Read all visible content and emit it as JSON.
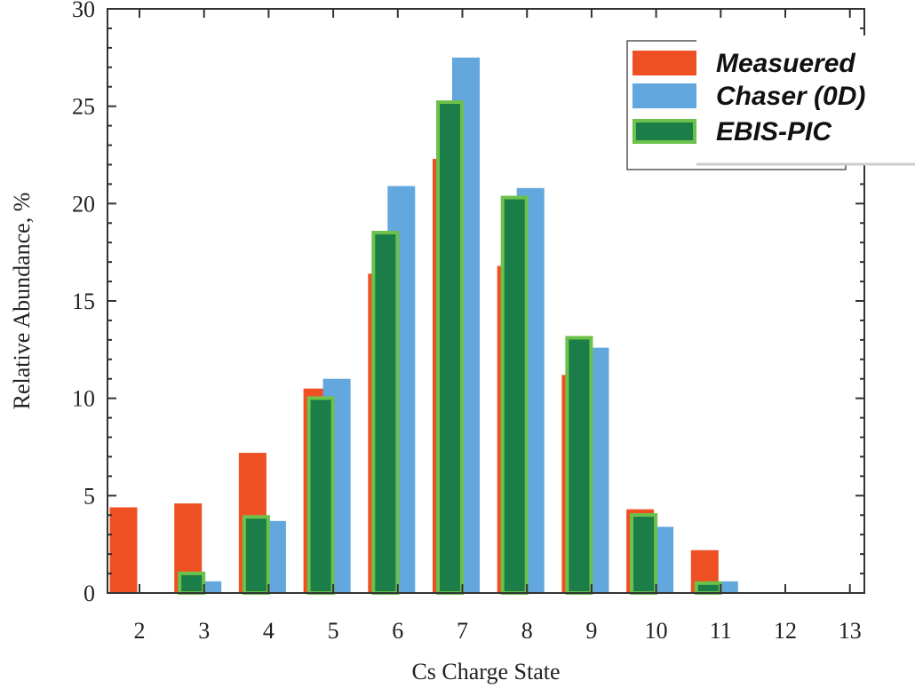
{
  "chart_data": {
    "type": "bar",
    "title": "",
    "xlabel": "Cs Charge State",
    "ylabel": "Relative Abundance, %",
    "categories": [
      "2",
      "3",
      "4",
      "5",
      "6",
      "7",
      "8",
      "9",
      "10",
      "11",
      "12",
      "13"
    ],
    "ylim": [
      0,
      30
    ],
    "yticks": [
      "0",
      "5",
      "10",
      "15",
      "20",
      "25",
      "30"
    ],
    "grid": false,
    "legend_position": "top-right",
    "series": [
      {
        "name": "Measuered",
        "color": "#ef5023",
        "values": [
          4.4,
          4.6,
          7.2,
          10.5,
          16.4,
          22.3,
          16.8,
          11.2,
          4.3,
          2.2,
          0,
          0
        ]
      },
      {
        "name": "Chaser (0D)",
        "color": "#62a7dd",
        "values": [
          0,
          0.6,
          3.7,
          11.0,
          20.9,
          27.5,
          20.8,
          12.6,
          3.4,
          0.6,
          0,
          0
        ]
      },
      {
        "name": "EBIS-PIC",
        "color": "#1b7d48",
        "border_color": "#6cc14a",
        "values": [
          0,
          1.1,
          4.0,
          10.1,
          18.6,
          25.3,
          20.4,
          13.2,
          4.1,
          0.6,
          0,
          0
        ]
      }
    ]
  }
}
